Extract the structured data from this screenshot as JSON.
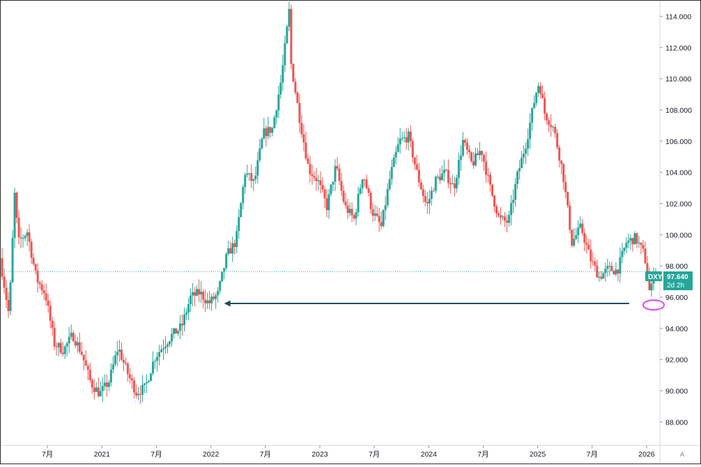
{
  "chart_data": {
    "type": "candlestick",
    "symbol": "DXY",
    "last_price": "97.640",
    "countdown": "2d 2h",
    "ylim": [
      86.5,
      115.0
    ],
    "y_ticks": [
      "88.000",
      "90.000",
      "92.000",
      "94.000",
      "96.000",
      "98.000",
      "100.000",
      "102.000",
      "104.000",
      "106.000",
      "108.000",
      "110.000",
      "112.000",
      "114.000"
    ],
    "x_ticks": [
      "7月",
      "2021",
      "7月",
      "2022",
      "7月",
      "2023",
      "7月",
      "2024",
      "7月",
      "2025",
      "7月",
      "2026"
    ],
    "x_tick_dates": [
      "2020-07",
      "2021-01",
      "2021-07",
      "2022-01",
      "2022-07",
      "2023-01",
      "2023-07",
      "2024-01",
      "2024-07",
      "2025-01",
      "2025-07",
      "2026-01"
    ],
    "x_range": [
      "2020-02",
      "2026-02"
    ],
    "price_line": 97.64,
    "support_arrow": {
      "from": "2026-01",
      "to": "2022-02",
      "level": 95.6
    },
    "highlight_ellipse": {
      "date": "2026-01",
      "level": 95.5
    },
    "colors": {
      "up": "#26a69a",
      "down": "#ef5350",
      "arrow": "#1f4e5f",
      "ellipse": "#e040fb",
      "price_line": "#26a69a"
    },
    "series_path": [
      [
        "2020-02",
        98.5
      ],
      [
        "2020-03",
        94.8
      ],
      [
        "2020-03-20",
        102.8
      ],
      [
        "2020-04",
        99.5
      ],
      [
        "2020-05",
        100.2
      ],
      [
        "2020-06",
        97.2
      ],
      [
        "2020-07",
        96.2
      ],
      [
        "2020-08",
        93.0
      ],
      [
        "2020-09",
        92.6
      ],
      [
        "2020-10",
        93.6
      ],
      [
        "2020-11",
        92.4
      ],
      [
        "2020-12",
        90.5
      ],
      [
        "2021-01",
        89.8
      ],
      [
        "2021-02",
        90.6
      ],
      [
        "2021-03",
        92.8
      ],
      [
        "2021-04",
        91.2
      ],
      [
        "2021-05",
        89.9
      ],
      [
        "2021-06",
        90.2
      ],
      [
        "2021-07",
        92.1
      ],
      [
        "2021-08",
        92.9
      ],
      [
        "2021-09",
        93.6
      ],
      [
        "2021-10",
        94.1
      ],
      [
        "2021-11",
        96.0
      ],
      [
        "2021-12",
        96.3
      ],
      [
        "2022-01",
        95.6
      ],
      [
        "2022-02",
        96.2
      ],
      [
        "2022-03",
        98.7
      ],
      [
        "2022-04",
        99.6
      ],
      [
        "2022-05",
        104.0
      ],
      [
        "2022-06",
        103.3
      ],
      [
        "2022-07",
        106.5
      ],
      [
        "2022-08",
        106.8
      ],
      [
        "2022-09",
        110.0
      ],
      [
        "2022-09-28",
        114.6
      ],
      [
        "2022-10",
        111.2
      ],
      [
        "2022-11",
        107.5
      ],
      [
        "2022-12",
        104.2
      ],
      [
        "2023-01",
        103.5
      ],
      [
        "2023-02",
        101.8
      ],
      [
        "2023-03",
        104.4
      ],
      [
        "2023-04",
        101.8
      ],
      [
        "2023-05",
        101.0
      ],
      [
        "2023-06",
        104.0
      ],
      [
        "2023-07",
        101.5
      ],
      [
        "2023-08",
        100.5
      ],
      [
        "2023-09",
        103.8
      ],
      [
        "2023-10",
        106.0
      ],
      [
        "2023-11",
        106.3
      ],
      [
        "2023-12",
        103.8
      ],
      [
        "2024-01",
        101.8
      ],
      [
        "2024-02",
        103.5
      ],
      [
        "2024-03",
        104.0
      ],
      [
        "2024-04",
        103.0
      ],
      [
        "2024-05",
        106.0
      ],
      [
        "2024-06",
        104.5
      ],
      [
        "2024-07",
        105.5
      ],
      [
        "2024-08",
        103.0
      ],
      [
        "2024-09",
        101.0
      ],
      [
        "2024-10",
        100.8
      ],
      [
        "2024-11",
        103.8
      ],
      [
        "2024-12",
        106.0
      ],
      [
        "2025-01",
        109.0
      ],
      [
        "2025-01-13",
        109.8
      ],
      [
        "2025-02",
        107.8
      ],
      [
        "2025-03",
        106.8
      ],
      [
        "2025-04",
        104.0
      ],
      [
        "2025-05",
        99.5
      ],
      [
        "2025-06",
        100.5
      ],
      [
        "2025-07",
        98.5
      ],
      [
        "2025-08",
        97.3
      ],
      [
        "2025-09",
        97.8
      ],
      [
        "2025-10",
        97.7
      ],
      [
        "2025-11",
        99.5
      ],
      [
        "2025-12",
        99.8
      ],
      [
        "2026-01",
        98.7
      ],
      [
        "2026-01-20",
        96.0
      ],
      [
        "2026-02",
        97.6
      ]
    ]
  }
}
